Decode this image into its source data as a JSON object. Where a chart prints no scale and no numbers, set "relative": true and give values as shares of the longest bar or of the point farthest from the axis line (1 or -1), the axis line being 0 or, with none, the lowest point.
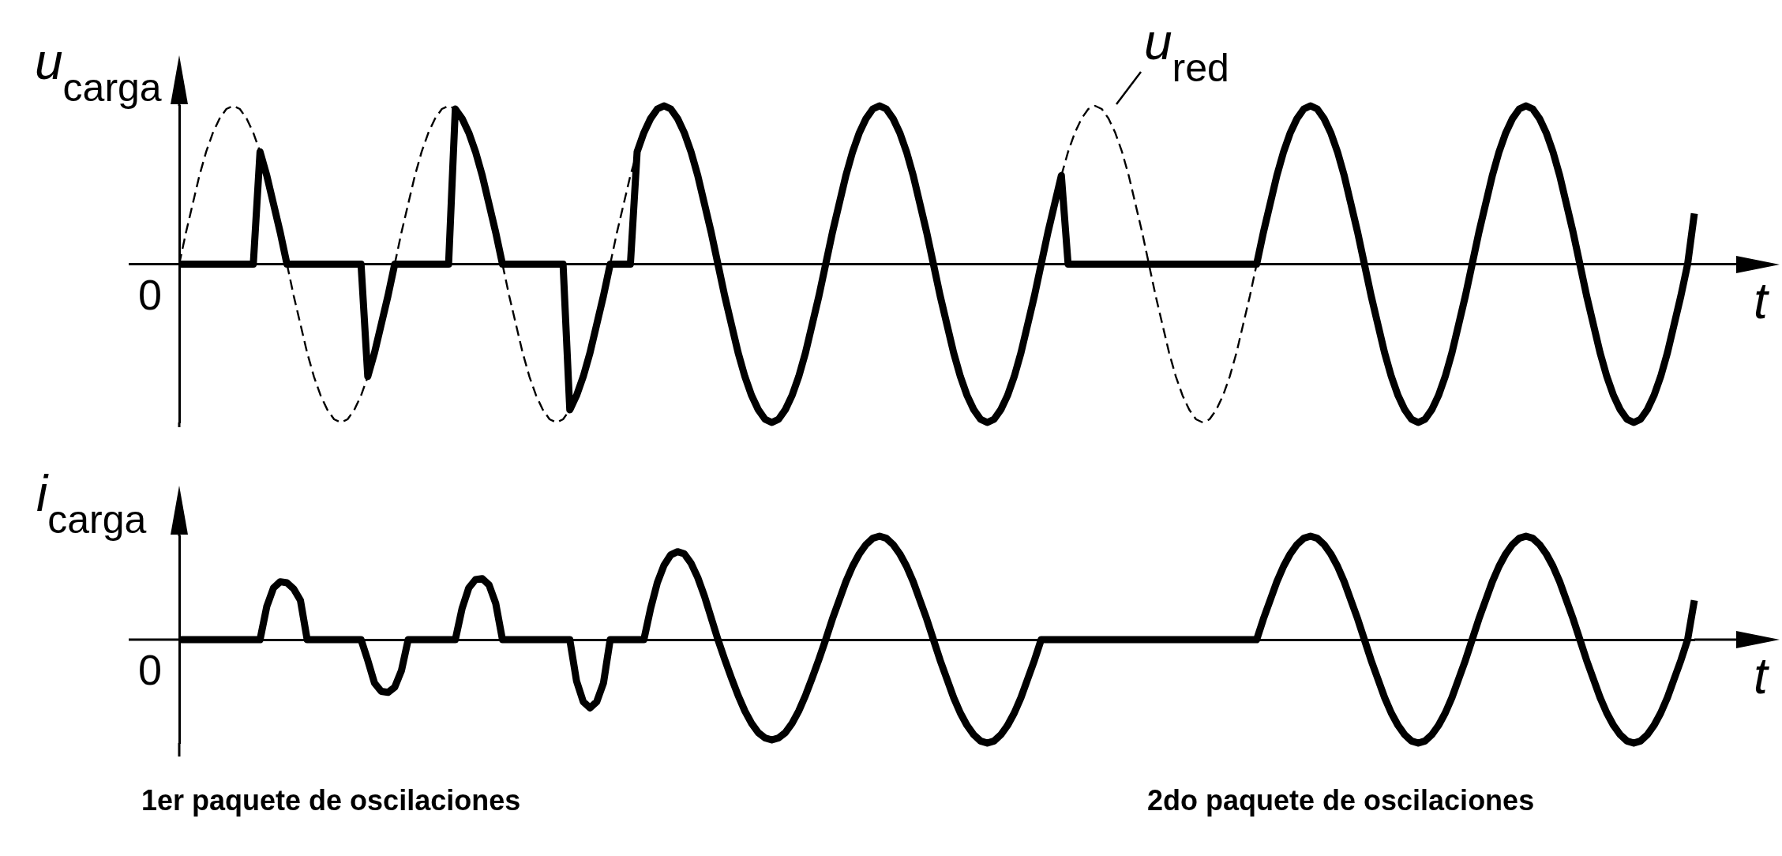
{
  "chart_data": [
    {
      "type": "line",
      "relative": true,
      "ylabel": "u$_{carga}$",
      "xlabel": "t",
      "marker": "none",
      "categories": [
        null,
        null,
        null,
        null,
        null,
        null,
        null,
        null,
        null,
        null,
        null,
        null,
        null,
        null,
        null,
        null,
        null,
        null,
        null,
        null,
        null,
        null,
        null,
        null,
        null,
        null,
        null,
        null,
        null,
        null,
        null,
        null,
        null,
        null,
        null,
        null,
        null,
        null,
        null,
        null,
        null,
        null,
        null,
        null,
        null,
        null,
        null,
        null,
        null,
        null,
        null,
        null,
        null,
        null,
        null,
        null,
        null,
        null,
        null,
        null,
        null,
        null,
        null,
        null,
        null,
        null,
        null,
        null,
        null,
        null,
        null,
        null,
        null,
        null,
        null,
        null,
        null,
        null,
        null,
        null,
        null,
        null,
        null,
        null,
        null,
        null,
        null,
        null,
        null,
        null,
        null,
        null,
        null,
        null,
        null,
        null,
        null,
        null,
        null,
        null,
        null,
        null,
        null,
        null,
        null,
        null,
        null,
        null,
        null,
        null,
        null,
        null,
        null,
        null,
        null,
        null,
        null,
        null,
        null,
        null,
        null,
        null,
        null,
        null,
        null,
        null,
        null,
        null,
        null,
        null,
        null,
        null,
        null,
        null,
        null,
        null,
        null,
        null,
        null,
        null,
        null,
        null,
        null,
        null,
        null,
        null,
        null,
        null,
        null,
        null,
        null,
        null,
        null,
        null,
        null,
        null,
        null,
        null,
        null,
        null,
        null,
        null,
        null,
        null,
        null,
        null,
        null,
        null,
        null,
        null,
        null,
        null,
        null,
        null,
        null,
        null,
        null,
        null,
        null,
        null,
        null,
        null,
        null,
        null,
        null,
        null,
        null,
        null,
        null,
        null,
        null,
        null,
        null,
        null,
        null,
        null,
        null,
        null,
        null,
        null,
        null,
        null,
        null,
        null,
        null,
        null,
        null,
        null,
        null,
        null,
        null,
        null,
        null,
        null,
        null,
        null,
        null,
        null,
        null,
        null,
        null,
        null,
        null,
        null,
        null,
        null
      ],
      "series": [
        {
          "color": "#000000",
          "line_style": "solid",
          "values": [
            0,
            0,
            0,
            0,
            0,
            0,
            0,
            0,
            0,
            0,
            0,
            0,
            0.71,
            0.56,
            0.38,
            0.2,
            0,
            0,
            0,
            0,
            0,
            0,
            0,
            0,
            0,
            0,
            0,
            0,
            -0.71,
            -0.56,
            -0.38,
            -0.2,
            0,
            0,
            0,
            0,
            0,
            0,
            0,
            0,
            0,
            0.98,
            0.92,
            0.83,
            0.71,
            0.56,
            0.38,
            0.2,
            0,
            0,
            0,
            0,
            0,
            0,
            0,
            0,
            0,
            0,
            -0.92,
            -0.83,
            -0.71,
            -0.56,
            -0.38,
            -0.2,
            0,
            0,
            0,
            0,
            0.71,
            0.83,
            0.92,
            0.98,
            1,
            0.98,
            0.92,
            0.83,
            0.71,
            0.56,
            0.38,
            0.2,
            0,
            -0.2,
            -0.38,
            -0.56,
            -0.71,
            -0.83,
            -0.92,
            -0.98,
            -1,
            -0.98,
            -0.92,
            -0.83,
            -0.71,
            -0.56,
            -0.38,
            -0.2,
            0,
            0.2,
            0.38,
            0.56,
            0.71,
            0.83,
            0.92,
            0.98,
            1,
            0.98,
            0.92,
            0.83,
            0.71,
            0.56,
            0.38,
            0.2,
            0,
            -0.2,
            -0.38,
            -0.56,
            -0.71,
            -0.83,
            -0.92,
            -0.98,
            -1,
            -0.98,
            -0.92,
            -0.83,
            -0.71,
            -0.56,
            -0.38,
            -0.2,
            0,
            0.2,
            0.38,
            0.56,
            0,
            0,
            0,
            0,
            0,
            0,
            0,
            0,
            0,
            0,
            0,
            0,
            0,
            0,
            0,
            0,
            0,
            0,
            0,
            0,
            0,
            0,
            0,
            0,
            0,
            0,
            0,
            0,
            0,
            0.2,
            0.38,
            0.56,
            0.71,
            0.83,
            0.92,
            0.98,
            1,
            0.98,
            0.92,
            0.83,
            0.71,
            0.56,
            0.38,
            0.2,
            0,
            -0.2,
            -0.38,
            -0.56,
            -0.71,
            -0.83,
            -0.92,
            -0.98,
            -1,
            -0.98,
            -0.92,
            -0.83,
            -0.71,
            -0.56,
            -0.38,
            -0.2,
            0,
            0.2,
            0.38,
            0.56,
            0.71,
            0.83,
            0.92,
            0.98,
            1,
            0.98,
            0.92,
            0.83,
            0.71,
            0.56,
            0.38,
            0.2,
            0,
            -0.2,
            -0.38,
            -0.56,
            -0.71,
            -0.83,
            -0.92,
            -0.98,
            -1,
            -0.98,
            -0.92,
            -0.83,
            -0.71,
            -0.56,
            -0.38,
            -0.2,
            0,
            0.32
          ]
        },
        {
          "name": "u$_{red}$",
          "color": "#000000",
          "line_style": "dashed",
          "values": [
            0,
            0.2,
            0.38,
            0.56,
            0.71,
            0.83,
            0.92,
            0.98,
            1,
            0.98,
            0.92,
            0.83,
            0.71,
            null,
            null,
            null,
            0,
            -0.2,
            -0.38,
            -0.56,
            -0.71,
            -0.83,
            -0.92,
            -0.98,
            -1,
            -0.98,
            -0.92,
            -0.83,
            -0.71,
            null,
            null,
            null,
            0,
            0.2,
            0.38,
            0.56,
            0.71,
            0.83,
            0.92,
            0.98,
            1,
            0.98,
            null,
            null,
            null,
            null,
            null,
            null,
            0,
            -0.2,
            -0.38,
            -0.56,
            -0.71,
            -0.83,
            -0.92,
            -0.98,
            -1,
            -0.98,
            -0.92,
            null,
            null,
            null,
            null,
            null,
            0,
            0.2,
            0.38,
            0.56,
            0.71,
            null,
            null,
            null,
            null,
            null,
            null,
            null,
            null,
            null,
            null,
            null,
            null,
            null,
            null,
            null,
            null,
            null,
            null,
            null,
            null,
            null,
            null,
            null,
            null,
            null,
            null,
            null,
            null,
            null,
            null,
            null,
            null,
            null,
            null,
            null,
            null,
            null,
            null,
            null,
            null,
            null,
            null,
            null,
            null,
            null,
            null,
            null,
            null,
            null,
            null,
            null,
            null,
            null,
            null,
            null,
            null,
            null,
            null,
            null,
            null,
            null,
            null,
            0.56,
            0.71,
            0.83,
            0.92,
            0.98,
            1,
            0.98,
            0.92,
            0.83,
            0.71,
            0.56,
            0.38,
            0.2,
            0,
            -0.2,
            -0.38,
            -0.56,
            -0.71,
            -0.83,
            -0.92,
            -0.98,
            -1,
            -0.98,
            -0.92,
            -0.83,
            -0.71,
            -0.56,
            -0.38,
            -0.2,
            0,
            null,
            null,
            null,
            null,
            null,
            null,
            null,
            null,
            null,
            null,
            null,
            null,
            null,
            null,
            null,
            null,
            null,
            null,
            null,
            null,
            null,
            null,
            null,
            null,
            null,
            null,
            null,
            null,
            null,
            null,
            null,
            null,
            null,
            null,
            null,
            null,
            null,
            null,
            null,
            null,
            null,
            null,
            null,
            null,
            null,
            null,
            null,
            null,
            null,
            null,
            null,
            null,
            null,
            null,
            null,
            null,
            null,
            null,
            null,
            null,
            null,
            null,
            null,
            null,
            null
          ]
        }
      ],
      "annotations": [
        "0"
      ]
    },
    {
      "type": "line",
      "relative": true,
      "ylabel": "i$_{carga}$",
      "xlabel": "t",
      "marker": "none",
      "categories": [
        null,
        null,
        null,
        null,
        null,
        null,
        null,
        null,
        null,
        null,
        null,
        null,
        null,
        null,
        null,
        null,
        null,
        null,
        null,
        null,
        null,
        null,
        null,
        null,
        null,
        null,
        null,
        null,
        null,
        null,
        null,
        null,
        null,
        null,
        null,
        null,
        null,
        null,
        null,
        null,
        null,
        null,
        null,
        null,
        null,
        null,
        null,
        null,
        null,
        null,
        null,
        null,
        null,
        null,
        null,
        null,
        null,
        null,
        null,
        null,
        null,
        null,
        null,
        null,
        null,
        null,
        null,
        null,
        null,
        null,
        null,
        null,
        null,
        null,
        null,
        null,
        null,
        null,
        null,
        null,
        null,
        null,
        null,
        null,
        null,
        null,
        null,
        null,
        null,
        null,
        null,
        null,
        null,
        null,
        null,
        null,
        null,
        null,
        null,
        null,
        null,
        null,
        null,
        null,
        null,
        null,
        null,
        null,
        null,
        null,
        null,
        null,
        null,
        null,
        null,
        null,
        null,
        null,
        null,
        null,
        null,
        null,
        null,
        null,
        null,
        null,
        null,
        null,
        null,
        null,
        null,
        null,
        null,
        null,
        null,
        null,
        null,
        null,
        null,
        null,
        null,
        null,
        null,
        null,
        null,
        null,
        null,
        null,
        null,
        null,
        null,
        null,
        null,
        null,
        null,
        null,
        null,
        null,
        null,
        null,
        null,
        null,
        null,
        null,
        null,
        null,
        null,
        null,
        null,
        null,
        null,
        null,
        null,
        null,
        null,
        null,
        null,
        null,
        null,
        null,
        null,
        null,
        null,
        null,
        null,
        null,
        null,
        null,
        null,
        null,
        null,
        null,
        null,
        null,
        null,
        null,
        null,
        null,
        null,
        null,
        null,
        null,
        null,
        null,
        null,
        null,
        null,
        null,
        null,
        null,
        null,
        null,
        null,
        null,
        null,
        null,
        null,
        null,
        null,
        null,
        null,
        null,
        null,
        null,
        null,
        null
      ],
      "series": [
        {
          "color": "#000000",
          "line_style": "solid",
          "values": [
            0,
            0,
            0,
            0,
            0,
            0,
            0,
            0,
            0,
            0,
            0,
            0,
            0,
            0.32,
            0.5,
            0.56,
            0.55,
            0.49,
            0.38,
            0,
            0,
            0,
            0,
            0,
            0,
            0,
            0,
            0,
            -0.2,
            -0.42,
            -0.5,
            -0.51,
            -0.46,
            -0.3,
            0,
            0,
            0,
            0,
            0,
            0,
            0,
            0,
            0.3,
            0.5,
            0.58,
            0.59,
            0.53,
            0.35,
            0,
            0,
            0,
            0,
            0,
            0,
            0,
            0,
            0,
            0,
            0,
            -0.4,
            -0.6,
            -0.66,
            -0.6,
            -0.42,
            0,
            0,
            0,
            0,
            0,
            0,
            0.3,
            0.55,
            0.72,
            0.82,
            0.85,
            0.83,
            0.74,
            0.6,
            0.42,
            0.21,
            0,
            -0.19,
            -0.37,
            -0.54,
            -0.69,
            -0.81,
            -0.9,
            -0.95,
            -0.97,
            -0.95,
            -0.9,
            -0.81,
            -0.69,
            -0.54,
            -0.37,
            -0.19,
            0,
            0.2,
            0.38,
            0.56,
            0.71,
            0.83,
            0.92,
            0.98,
            1,
            0.98,
            0.92,
            0.83,
            0.71,
            0.56,
            0.38,
            0.2,
            0,
            -0.2,
            -0.38,
            -0.56,
            -0.71,
            -0.83,
            -0.92,
            -0.98,
            -1,
            -0.98,
            -0.92,
            -0.83,
            -0.71,
            -0.56,
            -0.38,
            -0.2,
            0,
            0,
            0,
            0,
            0,
            0,
            0,
            0,
            0,
            0,
            0,
            0,
            0,
            0,
            0,
            0,
            0,
            0,
            0,
            0,
            0,
            0,
            0,
            0,
            0,
            0,
            0,
            0,
            0,
            0,
            0,
            0,
            0,
            0.2,
            0.38,
            0.56,
            0.71,
            0.83,
            0.92,
            0.98,
            1,
            0.98,
            0.92,
            0.83,
            0.71,
            0.56,
            0.38,
            0.2,
            0,
            -0.2,
            -0.38,
            -0.56,
            -0.71,
            -0.83,
            -0.92,
            -0.98,
            -1,
            -0.98,
            -0.92,
            -0.83,
            -0.71,
            -0.56,
            -0.38,
            -0.2,
            0,
            0.2,
            0.38,
            0.56,
            0.71,
            0.83,
            0.92,
            0.98,
            1,
            0.98,
            0.92,
            0.83,
            0.71,
            0.56,
            0.38,
            0.2,
            0,
            -0.2,
            -0.38,
            -0.56,
            -0.71,
            -0.83,
            -0.92,
            -0.98,
            -1,
            -0.98,
            -0.92,
            -0.83,
            -0.71,
            -0.56,
            -0.38,
            -0.2,
            0,
            0.38
          ]
        }
      ],
      "annotations": [
        "0",
        "1er paquete de oscilaciones",
        "2do paquete de oscilaciones"
      ]
    }
  ]
}
